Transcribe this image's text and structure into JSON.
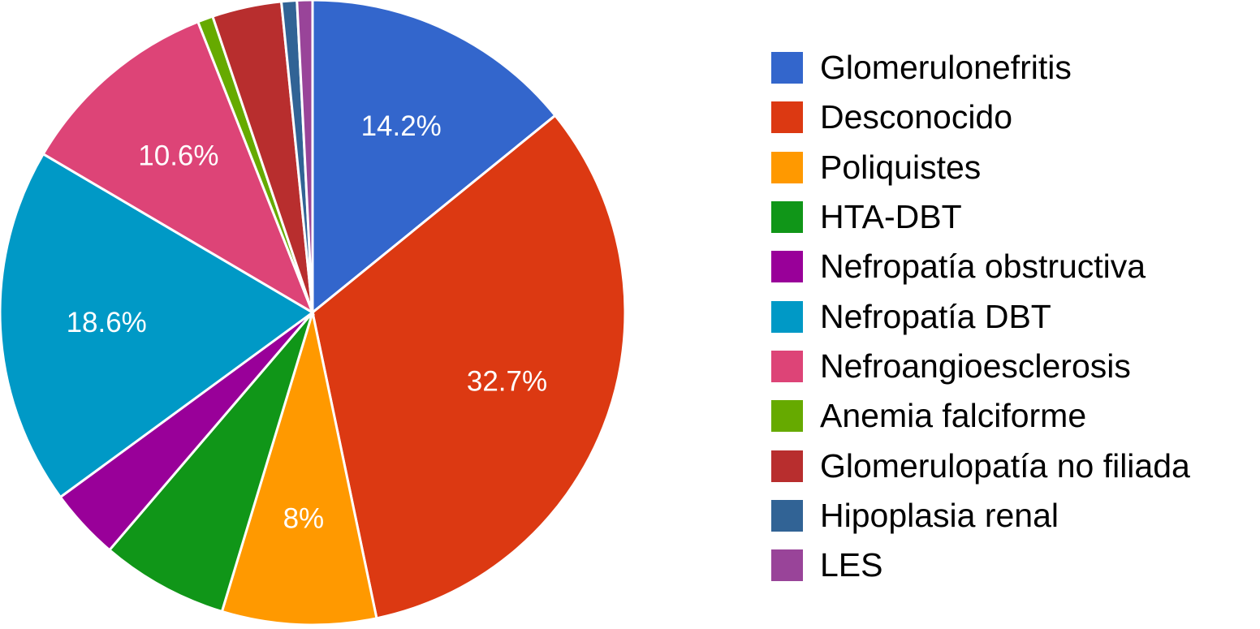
{
  "chart_data": {
    "type": "pie",
    "title": "",
    "legend_position": "right",
    "slices": [
      {
        "label": "Glomerulonefritis",
        "value": 14.2,
        "display": "14.2%",
        "color": "#3366cc"
      },
      {
        "label": "Desconocido",
        "value": 32.7,
        "display": "32.7%",
        "color": "#dc3912"
      },
      {
        "label": "Poliquistes",
        "value": 8.0,
        "display": "8%",
        "color": "#ff9900"
      },
      {
        "label": "HTA-DBT",
        "value": 6.6,
        "display": "",
        "color": "#109618"
      },
      {
        "label": "Nefropatía obstructiva",
        "value": 3.7,
        "display": "",
        "color": "#990099"
      },
      {
        "label": "Nefropatía DBT",
        "value": 18.6,
        "display": "18.6%",
        "color": "#0099c6"
      },
      {
        "label": "Nefroangioesclerosis",
        "value": 10.6,
        "display": "10.6%",
        "color": "#dd4477"
      },
      {
        "label": "Anemia falciforme",
        "value": 0.8,
        "display": "",
        "color": "#66aa00"
      },
      {
        "label": "Glomerulopatía no filiada",
        "value": 3.6,
        "display": "",
        "color": "#b82e2e"
      },
      {
        "label": "Hipoplasia renal",
        "value": 0.8,
        "display": "",
        "color": "#316395"
      },
      {
        "label": "LES",
        "value": 0.8,
        "display": "",
        "color": "#994499"
      }
    ]
  }
}
